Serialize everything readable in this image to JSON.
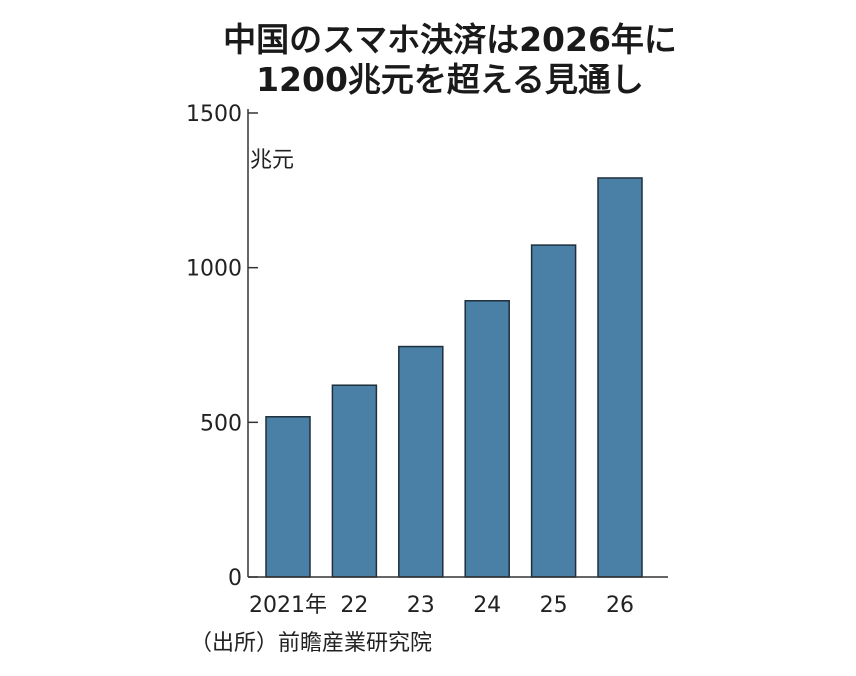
{
  "chart_data": {
    "type": "bar",
    "title": [
      "中国のスマホ決済は2026年に",
      "1200兆元を超える見通し"
    ],
    "ylabel": "兆元",
    "categories": [
      "2021年",
      "22",
      "23",
      "24",
      "25",
      "26"
    ],
    "values": [
      518,
      620,
      745,
      893,
      1073,
      1290
    ],
    "ylim": [
      0,
      1500
    ],
    "yticks": [
      0,
      500,
      1000,
      1500
    ],
    "grid": false,
    "bar_color": "#4a7fa6",
    "bar_stroke": "#1f2f3d",
    "source": "（出所）前瞻産業研究院"
  }
}
